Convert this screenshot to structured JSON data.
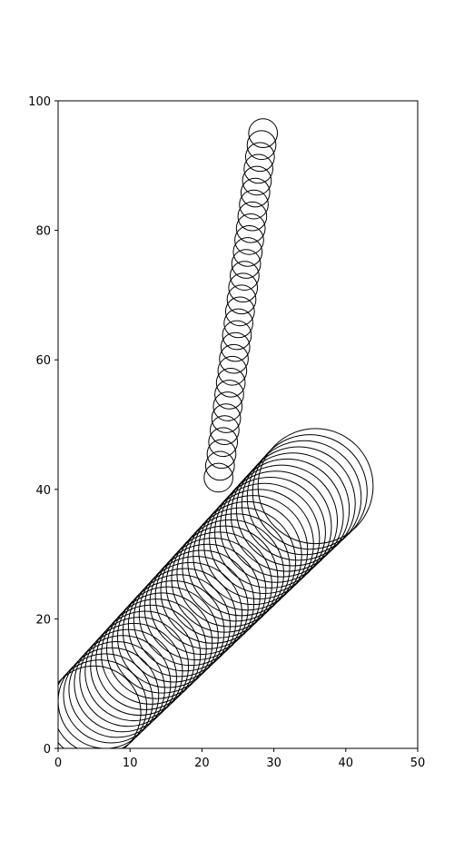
{
  "chart_data": {
    "type": "scatter",
    "title": "",
    "xlabel": "",
    "ylabel": "",
    "xlim": [
      0,
      50
    ],
    "ylim": [
      0,
      100
    ],
    "x_ticks": [
      "0",
      "10",
      "20",
      "30",
      "40",
      "50"
    ],
    "y_ticks": [
      "0",
      "20",
      "40",
      "60",
      "80",
      "100"
    ],
    "grid": false,
    "marker": "circle-outline",
    "edge_color": "#000000",
    "series": [
      {
        "start": {
          "x": 22.3,
          "y": 41.8,
          "r": 2.0
        },
        "end": {
          "x": 28.5,
          "y": 95.0,
          "r": 2.0
        },
        "count": 30
      },
      {
        "start": {
          "x": 5.0,
          "y": 5.5,
          "r": 6.5
        },
        "end": {
          "x": 35.8,
          "y": 40.5,
          "r": 8.0
        },
        "count": 40
      }
    ]
  }
}
